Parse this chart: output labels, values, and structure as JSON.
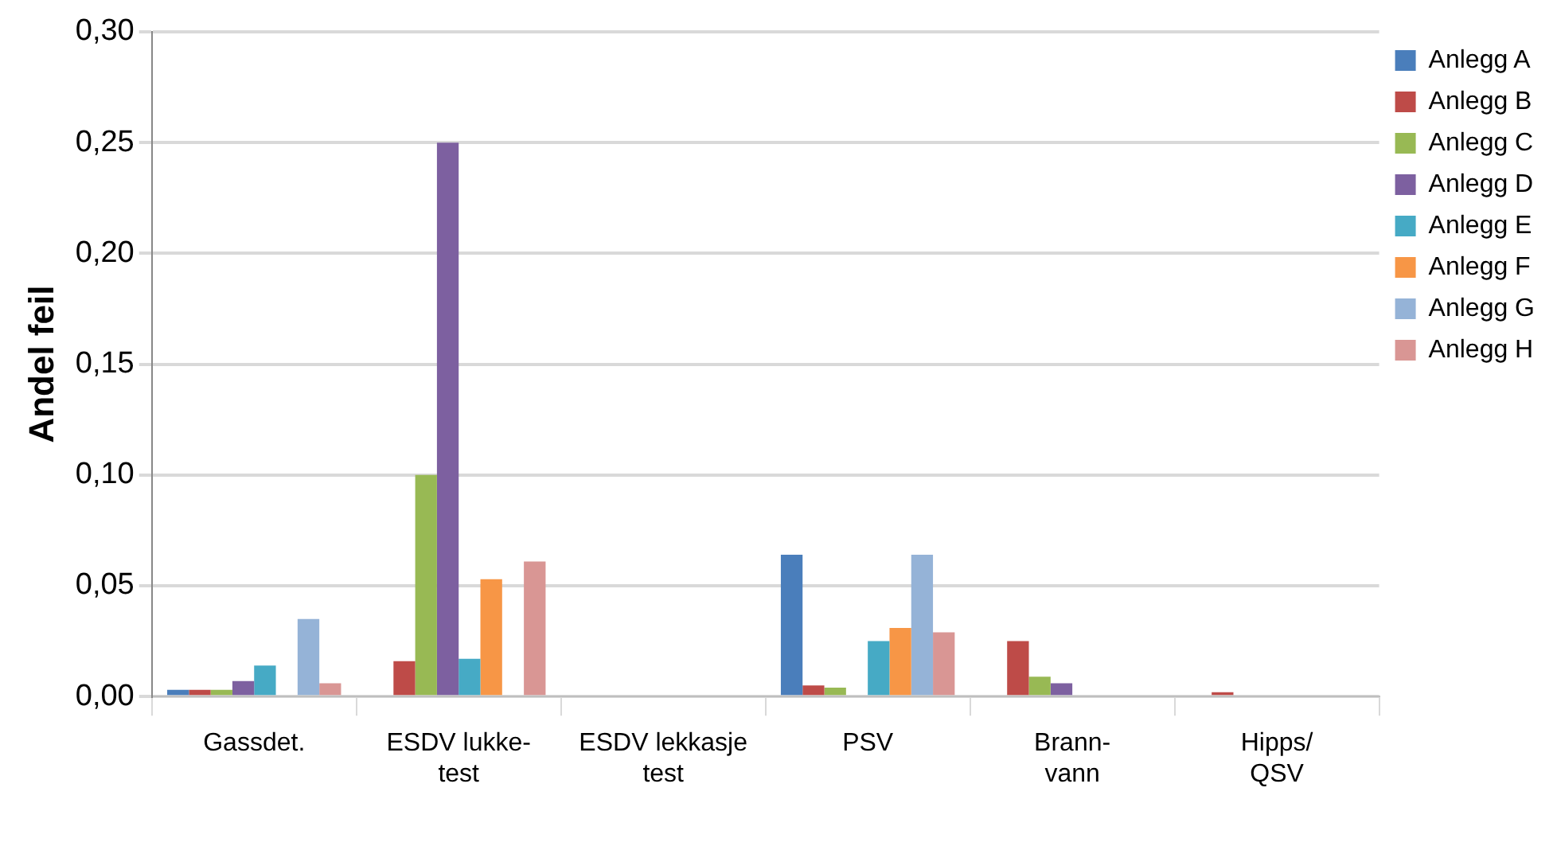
{
  "chart_data": {
    "type": "bar",
    "ylabel": "Andel feil",
    "categories": [
      "Gassdet.",
      "ESDV lukke-\ntest",
      "ESDV lekkasje\ntest",
      "PSV",
      "Brann-\nvann",
      "Hipps/\nQSV"
    ],
    "series": [
      {
        "name": "Anlegg A",
        "color": "#4a7ebb",
        "values": [
          0.003,
          0,
          0,
          0.064,
          0,
          0
        ]
      },
      {
        "name": "Anlegg B",
        "color": "#be4b48",
        "values": [
          0.003,
          0.016,
          0,
          0.005,
          0.025,
          0.002
        ]
      },
      {
        "name": "Anlegg C",
        "color": "#98b954",
        "values": [
          0.003,
          0.1,
          0,
          0.004,
          0.009,
          0
        ]
      },
      {
        "name": "Anlegg D",
        "color": "#7d60a0",
        "values": [
          0.007,
          0.25,
          0,
          0,
          0.006,
          0
        ]
      },
      {
        "name": "Anlegg E",
        "color": "#46aac5",
        "values": [
          0.014,
          0.017,
          0,
          0.025,
          0,
          0
        ]
      },
      {
        "name": "Anlegg F",
        "color": "#f79646",
        "values": [
          0,
          0.053,
          0,
          0.031,
          0,
          0
        ]
      },
      {
        "name": "Anlegg G",
        "color": "#95b3d7",
        "values": [
          0.035,
          0,
          0,
          0.064,
          0,
          0
        ]
      },
      {
        "name": "Anlegg H",
        "color": "#d99694",
        "values": [
          0.006,
          0.061,
          0,
          0.029,
          0,
          0
        ]
      }
    ],
    "ylim": [
      0,
      0.3
    ],
    "yticks": [
      {
        "value": 0,
        "label": "0,00"
      },
      {
        "value": 0.05,
        "label": "0,05"
      },
      {
        "value": 0.1,
        "label": "0,10"
      },
      {
        "value": 0.15,
        "label": "0,15"
      },
      {
        "value": 0.2,
        "label": "0,20"
      },
      {
        "value": 0.25,
        "label": "0,25"
      },
      {
        "value": 0.3,
        "label": "0,30"
      }
    ],
    "grid": "y",
    "legend": "right"
  }
}
